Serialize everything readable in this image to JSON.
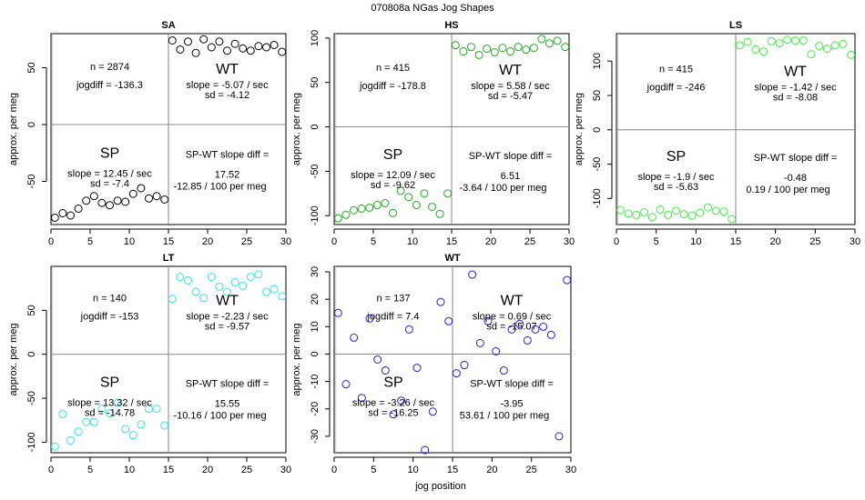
{
  "figure": {
    "title": "070808a   NGas Jog Shapes",
    "xlabel": "jog position",
    "ylabel": "approx. per meg"
  },
  "chart_data": [
    {
      "id": "sa",
      "type": "scatter",
      "title": "SA",
      "color": "#000000",
      "xlim": [
        0,
        30
      ],
      "ylim": [
        -88,
        80
      ],
      "xticks": [
        0,
        5,
        10,
        15,
        20,
        25,
        30
      ],
      "yticks": [
        -50,
        0,
        50
      ],
      "split_x": 15,
      "split_y": 0,
      "x": [
        0.5,
        1.5,
        2.5,
        3.5,
        4.5,
        5.5,
        6.5,
        7.5,
        8.5,
        9.5,
        10.5,
        11.5,
        12.5,
        13.5,
        14.5,
        15.5,
        16.5,
        17.5,
        18.5,
        19.5,
        20.5,
        21.5,
        22.5,
        23.5,
        24.5,
        25.5,
        26.5,
        27.5,
        28.5,
        29.5
      ],
      "y": [
        -82,
        -78,
        -80,
        -74,
        -67,
        -63,
        -69,
        -71,
        -67,
        -68,
        -61,
        -56,
        -65,
        -63,
        -66,
        74,
        66,
        73,
        63,
        75,
        68,
        73,
        65,
        71,
        67,
        65,
        69,
        68,
        70,
        64
      ],
      "text": {
        "n": "n = 2874",
        "jogdiff": "jogdiff = -136.3",
        "wt_label": "WT",
        "wt_slope": "slope = -5.07 / sec",
        "wt_sd": "sd = -4.12",
        "sp_label": "SP",
        "sp_slope": "slope = 12.45 / sec",
        "sp_sd": "sd = -7.4",
        "diff_label": "SP-WT slope diff =",
        "diff_value": "17.52",
        "per_meg": "-12.85 / 100 per meg"
      }
    },
    {
      "id": "hs",
      "type": "scatter",
      "title": "HS",
      "color": "#22aa22",
      "xlim": [
        0,
        30
      ],
      "ylim": [
        -110,
        105
      ],
      "xticks": [
        0,
        5,
        10,
        15,
        20,
        25,
        30
      ],
      "yticks": [
        -100,
        -50,
        0,
        50,
        100
      ],
      "split_x": 15,
      "split_y": 0,
      "x": [
        0.5,
        1.5,
        2.5,
        3.5,
        4.5,
        5.5,
        6.5,
        7.5,
        8.5,
        9.5,
        10.5,
        11.5,
        12.5,
        13.5,
        14.5,
        15.5,
        16.5,
        17.5,
        18.5,
        19.5,
        20.5,
        21.5,
        22.5,
        23.5,
        24.5,
        25.5,
        26.5,
        27.5,
        28.5,
        29.5
      ],
      "y": [
        -103,
        -99,
        -94,
        -92,
        -91,
        -88,
        -86,
        -97,
        -72,
        -79,
        -88,
        -75,
        -90,
        -98,
        -75,
        92,
        85,
        90,
        81,
        88,
        84,
        89,
        85,
        90,
        87,
        89,
        99,
        94,
        97,
        90
      ],
      "text": {
        "n": "n = 415",
        "jogdiff": "jogdiff = -178.8",
        "wt_label": "WT",
        "wt_slope": "slope = 5.58 / sec",
        "wt_sd": "sd = -5.47",
        "sp_label": "SP",
        "sp_slope": "slope = 12.09 / sec",
        "sp_sd": "sd = -9.62",
        "diff_label": "SP-WT slope diff =",
        "diff_value": "6.51",
        "per_meg": "-3.64 / 100 per meg"
      }
    },
    {
      "id": "ls",
      "type": "scatter",
      "title": "LS",
      "color": "#44ee44",
      "xlim": [
        0,
        30
      ],
      "ylim": [
        -138,
        140
      ],
      "xticks": [
        0,
        5,
        10,
        15,
        20,
        25,
        30
      ],
      "yticks": [
        -100,
        -50,
        0,
        50,
        100
      ],
      "split_x": 15,
      "split_y": 0,
      "x": [
        0.5,
        1.5,
        2.5,
        3.5,
        4.5,
        5.5,
        6.5,
        7.5,
        8.5,
        9.5,
        10.5,
        11.5,
        12.5,
        13.5,
        14.5,
        15.5,
        16.5,
        17.5,
        18.5,
        19.5,
        20.5,
        21.5,
        22.5,
        23.5,
        24.5,
        25.5,
        26.5,
        27.5,
        28.5,
        29.5
      ],
      "y": [
        -117,
        -122,
        -124,
        -120,
        -127,
        -116,
        -124,
        -118,
        -123,
        -125,
        -121,
        -113,
        -118,
        -119,
        -130,
        123,
        128,
        117,
        114,
        129,
        126,
        131,
        130,
        130,
        110,
        122,
        118,
        123,
        125,
        109
      ],
      "text": {
        "n": "n = 415",
        "jogdiff": "jogdiff = -246",
        "wt_label": "WT",
        "wt_slope": "slope = -1.42 / sec",
        "wt_sd": "sd = -8.08",
        "sp_label": "SP",
        "sp_slope": "slope = -1.9 / sec",
        "sp_sd": "sd = -5.63",
        "diff_label": "SP-WT slope diff =",
        "diff_value": "-0.48",
        "per_meg": "0.19 / 100 per meg"
      }
    },
    {
      "id": "lt",
      "type": "scatter",
      "title": "LT",
      "color": "#33e5e5",
      "xlim": [
        0,
        30
      ],
      "ylim": [
        -112,
        100
      ],
      "xticks": [
        0,
        5,
        10,
        15,
        20,
        25,
        30
      ],
      "yticks": [
        -100,
        -50,
        0,
        50
      ],
      "split_x": 15,
      "split_y": 0,
      "x": [
        0.5,
        1.5,
        2.5,
        3.5,
        4.5,
        5.5,
        6.5,
        7.5,
        8.5,
        9.5,
        10.5,
        11.5,
        12.5,
        13.5,
        14.5,
        15.5,
        16.5,
        17.5,
        18.5,
        19.5,
        20.5,
        21.5,
        22.5,
        23.5,
        24.5,
        25.5,
        26.5,
        27.5,
        28.5,
        29.5
      ],
      "y": [
        -105,
        -68,
        -98,
        -88,
        -77,
        -77,
        -62,
        -67,
        -55,
        -85,
        -92,
        -80,
        -62,
        -62,
        -81,
        63,
        88,
        84,
        71,
        64,
        88,
        77,
        71,
        82,
        78,
        88,
        91,
        71,
        74,
        66
      ],
      "text": {
        "n": "n = 140",
        "jogdiff": "jogdiff = -153",
        "wt_label": "WT",
        "wt_slope": "slope = -2.23 / sec",
        "wt_sd": "sd = -9.57",
        "sp_label": "SP",
        "sp_slope": "slope = 13.32 / sec",
        "sp_sd": "sd = -14.78",
        "diff_label": "SP-WT slope diff =",
        "diff_value": "15.55",
        "per_meg": "-10.16 / 100 per meg"
      }
    },
    {
      "id": "wt",
      "type": "scatter",
      "title": "WT",
      "color": "#2222dd",
      "xlim": [
        0,
        30
      ],
      "ylim": [
        -36,
        32
      ],
      "xticks": [
        0,
        5,
        10,
        15,
        20,
        25,
        30
      ],
      "yticks": [
        -30,
        -20,
        -10,
        0,
        10,
        20,
        30
      ],
      "split_x": 15,
      "split_y": 0,
      "x": [
        0.5,
        1.5,
        2.5,
        3.5,
        4.5,
        5.5,
        6.5,
        7.5,
        8.5,
        9.5,
        10.5,
        11.5,
        12.5,
        13.5,
        14.5,
        15.5,
        16.5,
        17.5,
        18.5,
        19.5,
        20.5,
        21.5,
        22.5,
        23.5,
        24.5,
        25.5,
        26.5,
        27.5,
        28.5,
        29.5
      ],
      "y": [
        15,
        -11,
        6,
        -16,
        13,
        -2,
        -6,
        -22,
        -17,
        9,
        -5,
        -35,
        -21,
        19,
        12,
        -7,
        -4,
        29,
        4,
        12,
        1,
        -6,
        9,
        11,
        5,
        9,
        10,
        7,
        -30,
        27
      ],
      "text": {
        "n": "n = 137",
        "jogdiff": "jogdiff = 7.4",
        "wt_label": "WT",
        "wt_slope": "slope = 0.69 / sec",
        "wt_sd": "sd = -15.07",
        "sp_label": "SP",
        "sp_slope": "slope = -3.26 / sec",
        "sp_sd": "sd = -16.25",
        "diff_label": "SP-WT slope diff =",
        "diff_value": "-3.95",
        "per_meg": "53.61 / 100 per meg"
      }
    }
  ]
}
